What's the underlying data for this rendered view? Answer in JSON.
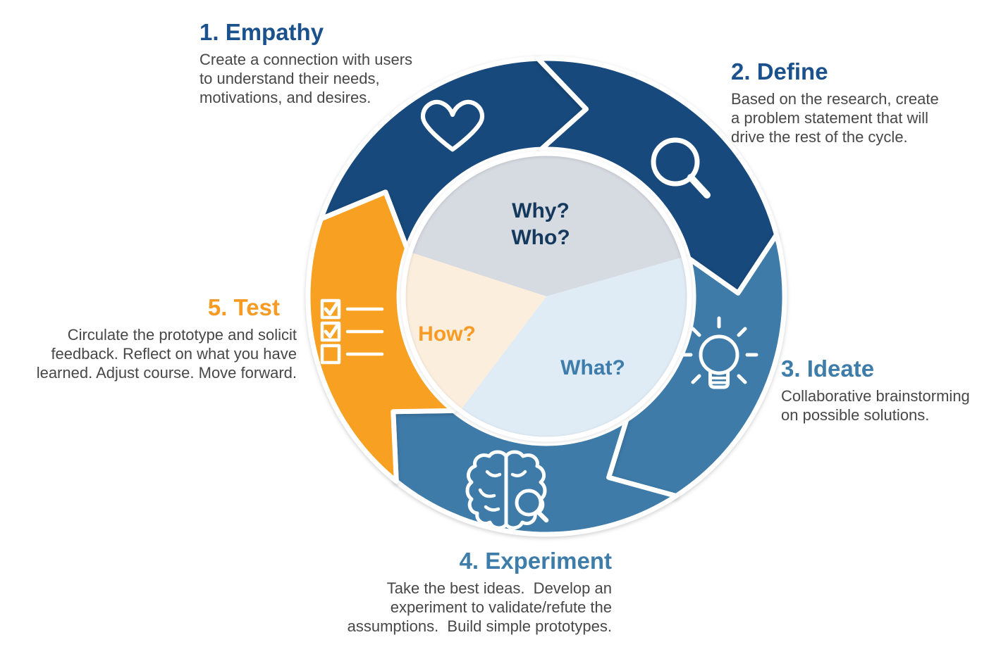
{
  "figure": {
    "type": "cycle-diagram",
    "direction": "clockwise",
    "background": "#ffffff"
  },
  "stages": [
    {
      "id": "empathy",
      "title": "1. Empathy",
      "desc_lines": [
        "Create a connection with users",
        "to understand their needs,",
        "motivations, and desires."
      ],
      "title_color": "#1b518c",
      "segment_color": "#17497c",
      "icon": "heart-icon",
      "arc": {
        "start": 289,
        "end": 358
      }
    },
    {
      "id": "define",
      "title": "2. Define",
      "desc_lines": [
        "Based on the research, create",
        "a problem statement that will",
        "drive the rest of the cycle."
      ],
      "title_color": "#1b518c",
      "segment_color": "#17497c",
      "icon": "magnifying-glass-icon",
      "arc": {
        "start": -2,
        "end": 75
      }
    },
    {
      "id": "ideate",
      "title": "3. Ideate",
      "desc_lines": [
        "Collaborative brainstorming",
        "on possible solutions."
      ],
      "title_color": "#3e7caa",
      "segment_color": "#3e7ba9",
      "icon": "lightbulb-icon",
      "arc": {
        "start": 75,
        "end": 147
      }
    },
    {
      "id": "experiment",
      "title": "4. Experiment",
      "desc_lines": [
        "Take the best ideas.  Develop an",
        "experiment to validate/refute the",
        "assumptions.  Build simple prototypes."
      ],
      "title_color": "#3e7caa",
      "segment_color": "#3e7ba9",
      "icon": "brain-magnifier-icon",
      "arc": {
        "start": 147,
        "end": 219
      }
    },
    {
      "id": "test",
      "title": "5. Test",
      "desc_lines": [
        "Circulate the prototype and solicit",
        "feedback. Reflect on what you have",
        "learned. Adjust course. Move forward."
      ],
      "title_color": "#f79b25",
      "segment_color": "#f7a022",
      "icon": "checklist-icon",
      "arc": {
        "start": 219,
        "end": 289
      }
    }
  ],
  "hub": {
    "border_color": "#ffffff",
    "slices": [
      {
        "id": "why-who",
        "lines": [
          "Why?",
          "Who?"
        ],
        "fill": "#d6dae1",
        "text_color": "#14395c",
        "arc": {
          "start": -72,
          "end": 74
        }
      },
      {
        "id": "what",
        "lines": [
          "What?"
        ],
        "fill": "#dfebf5",
        "text_color": "#3d7cab",
        "arc": {
          "start": 74,
          "end": 217
        }
      },
      {
        "id": "how",
        "lines": [
          "How?"
        ],
        "fill": "#fceedd",
        "text_color": "#f79b25",
        "arc": {
          "start": 217,
          "end": 288
        }
      }
    ]
  }
}
